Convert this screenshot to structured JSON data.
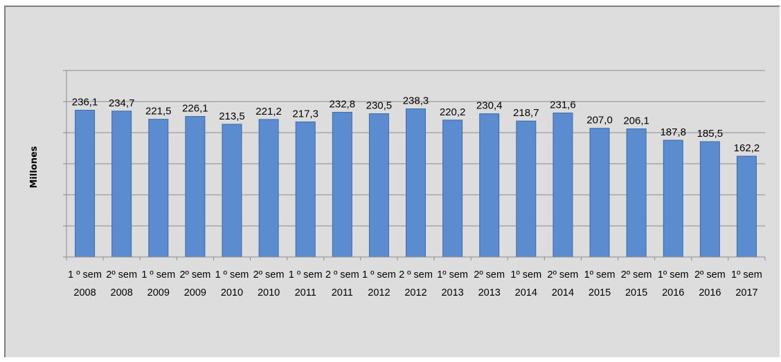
{
  "chart_data": {
    "type": "bar",
    "title": "",
    "xlabel": "",
    "ylabel": "Millones",
    "ylim": [
      0,
      300
    ],
    "grid": true,
    "legend": "none",
    "bar_color": "#5b8ccf",
    "background_color": "#dddddd",
    "categories": [
      [
        "1 º sem",
        "2008"
      ],
      [
        "2º sem",
        "2008"
      ],
      [
        "1 º sem",
        "2009"
      ],
      [
        "2º sem",
        "2009"
      ],
      [
        "1 º sem",
        "2010"
      ],
      [
        "2º sem",
        "2010"
      ],
      [
        "1 º sem",
        "2011"
      ],
      [
        "2 º sem",
        "2011"
      ],
      [
        "1 º sem",
        "2012"
      ],
      [
        "2 º sem",
        "2012"
      ],
      [
        "1º sem",
        "2013"
      ],
      [
        "2º sem",
        "2013"
      ],
      [
        "1º sem",
        "2014"
      ],
      [
        "2º sem",
        "2014"
      ],
      [
        "1º sem",
        "2015"
      ],
      [
        "2º sem",
        "2015"
      ],
      [
        "1º sem",
        "2016"
      ],
      [
        "2º sem",
        "2016"
      ],
      [
        "1º sem",
        "2017"
      ]
    ],
    "values": [
      236.1,
      234.7,
      221.5,
      226.1,
      213.5,
      221.2,
      217.3,
      232.8,
      230.5,
      238.3,
      220.2,
      230.4,
      218.7,
      231.6,
      207.0,
      206.1,
      187.8,
      185.5,
      162.2
    ],
    "data_labels": [
      "236,1",
      "234,7",
      "221,5",
      "226,1",
      "213,5",
      "221,2",
      "217,3",
      "232,8",
      "230,5",
      "238,3",
      "220,2",
      "230,4",
      "218,7",
      "231,6",
      "207,0",
      "206,1",
      "187,8",
      "185,5",
      "162,2"
    ]
  }
}
